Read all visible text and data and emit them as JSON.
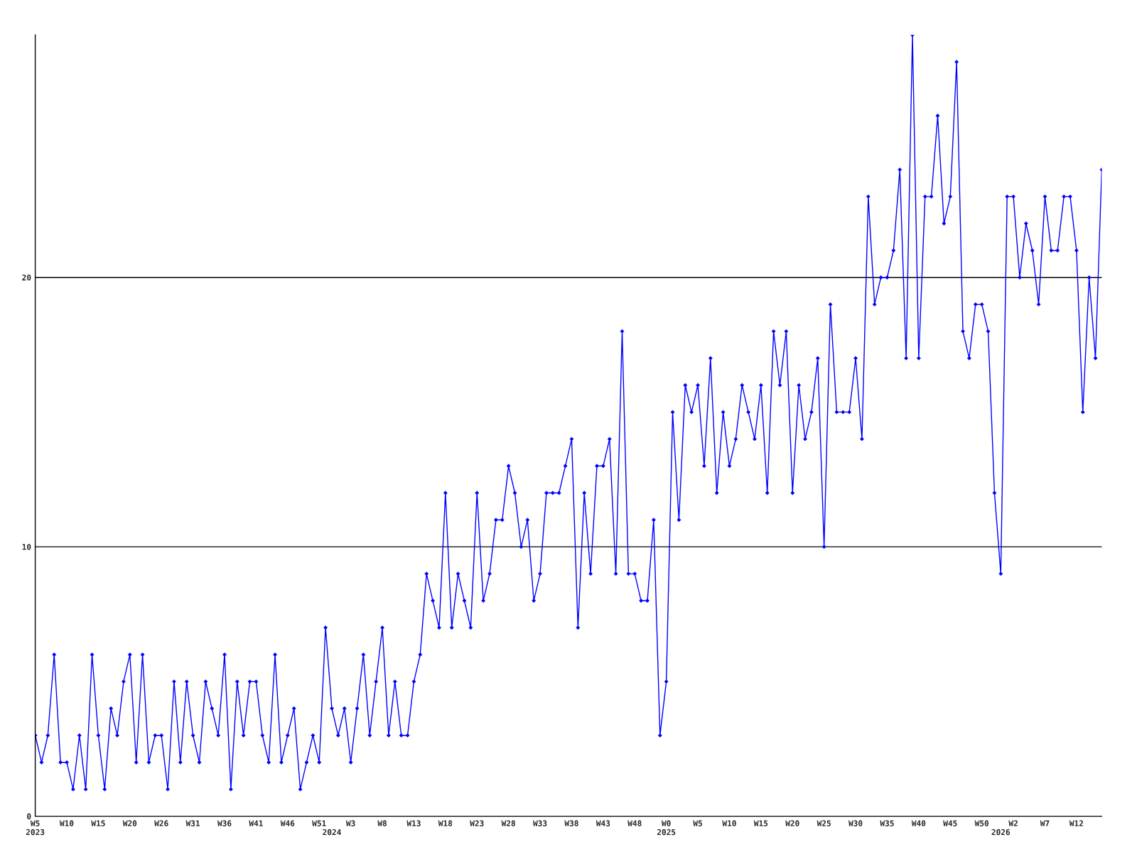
{
  "chart_data": {
    "type": "line",
    "categories": [
      "W5\n2023",
      null,
      null,
      null,
      null,
      "W10",
      null,
      null,
      null,
      null,
      "W15",
      null,
      null,
      null,
      null,
      "W20",
      null,
      null,
      null,
      null,
      "W26",
      null,
      null,
      null,
      null,
      "W31",
      null,
      null,
      null,
      null,
      "W36",
      null,
      null,
      null,
      null,
      "W41",
      null,
      null,
      null,
      null,
      "W46",
      null,
      null,
      null,
      null,
      "W51",
      null,
      "\n2024",
      null,
      null,
      "W3",
      null,
      null,
      null,
      null,
      "W8",
      null,
      null,
      null,
      null,
      "W13",
      null,
      null,
      null,
      null,
      "W18",
      null,
      null,
      null,
      null,
      "W23",
      null,
      null,
      null,
      null,
      "W28",
      null,
      null,
      null,
      null,
      "W33",
      null,
      null,
      null,
      null,
      "W38",
      null,
      null,
      null,
      null,
      "W43",
      null,
      null,
      null,
      null,
      "W48",
      null,
      null,
      null,
      null,
      "W0\n2025",
      null,
      null,
      null,
      null,
      "W5",
      null,
      null,
      null,
      null,
      "W10",
      null,
      null,
      null,
      null,
      "W15",
      null,
      null,
      null,
      null,
      "W20",
      null,
      null,
      null,
      null,
      "W25",
      null,
      null,
      null,
      null,
      "W30",
      null,
      null,
      null,
      null,
      "W35",
      null,
      null,
      null,
      null,
      "W40",
      null,
      null,
      null,
      null,
      "W45",
      null,
      null,
      null,
      null,
      "W50",
      null,
      null,
      "\n2026",
      null,
      "W2",
      null,
      null,
      null,
      null,
      "W7",
      null,
      null,
      null,
      null,
      "W12",
      null,
      null,
      null,
      null
    ],
    "series": [
      {
        "color": "#0000ff",
        "values": [
          3,
          2,
          3,
          6,
          2,
          2,
          1,
          3,
          1,
          6,
          3,
          1,
          4,
          3,
          5,
          6,
          2,
          6,
          2,
          3,
          3,
          1,
          5,
          2,
          5,
          3,
          2,
          5,
          4,
          3,
          6,
          1,
          5,
          3,
          5,
          5,
          3,
          2,
          6,
          2,
          3,
          4,
          1,
          2,
          3,
          2,
          7,
          4,
          3,
          4,
          2,
          4,
          6,
          3,
          5,
          7,
          3,
          5,
          3,
          3,
          5,
          6,
          9,
          8,
          7,
          12,
          7,
          9,
          8,
          7,
          12,
          8,
          9,
          11,
          11,
          13,
          12,
          10,
          11,
          8,
          9,
          12,
          12,
          12,
          13,
          14,
          7,
          12,
          9,
          13,
          13,
          14,
          9,
          18,
          9,
          9,
          8,
          8,
          11,
          3,
          5,
          15,
          11,
          16,
          15,
          16,
          13,
          17,
          12,
          15,
          13,
          14,
          16,
          15,
          14,
          16,
          12,
          18,
          16,
          18,
          12,
          16,
          14,
          15,
          17,
          10,
          19,
          15,
          15,
          15,
          17,
          14,
          23,
          19,
          20,
          20,
          21,
          24,
          17,
          29,
          17,
          23,
          23,
          26,
          22,
          23,
          28,
          18,
          17,
          19,
          19,
          18,
          12,
          9,
          23,
          23,
          20,
          22,
          21,
          19,
          23,
          21,
          21,
          23,
          23,
          21,
          15,
          20,
          17,
          24
        ]
      }
    ],
    "ylim": [
      0,
      29
    ],
    "yticks": [
      0,
      10,
      20
    ],
    "grid": "y",
    "marker": "diamond",
    "line_style": "solid"
  }
}
